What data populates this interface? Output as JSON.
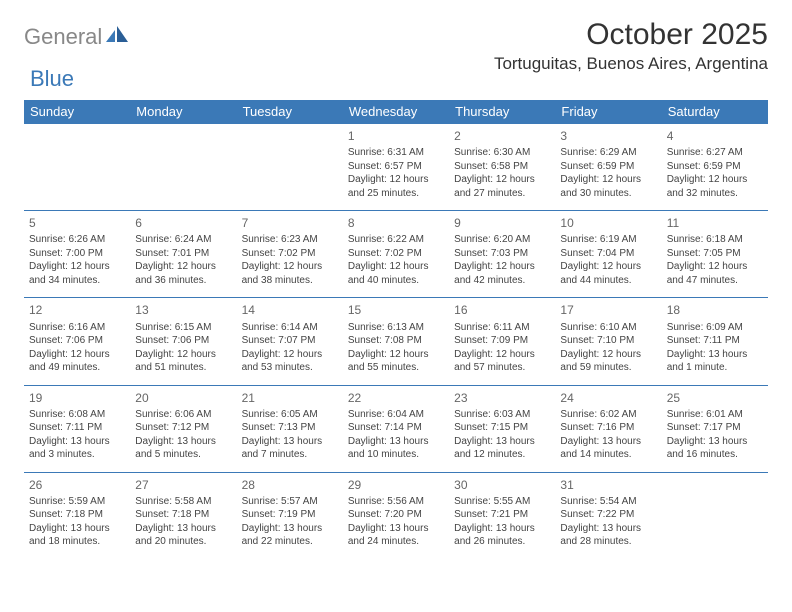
{
  "logo": {
    "left": "General",
    "right": "Blue"
  },
  "title": "October 2025",
  "location": "Tortuguitas, Buenos Aires, Argentina",
  "colors": {
    "header_bg": "#3b79b7",
    "header_text": "#ffffff",
    "border": "#3b79b7",
    "body_text": "#444444",
    "daynum": "#666666",
    "logo_gray": "#888888",
    "logo_blue": "#3b79b7",
    "page_bg": "#ffffff"
  },
  "daynames": [
    "Sunday",
    "Monday",
    "Tuesday",
    "Wednesday",
    "Thursday",
    "Friday",
    "Saturday"
  ],
  "weeks": [
    [
      {
        "day": "",
        "sunrise": "",
        "sunset": "",
        "daylight1": "",
        "daylight2": ""
      },
      {
        "day": "",
        "sunrise": "",
        "sunset": "",
        "daylight1": "",
        "daylight2": ""
      },
      {
        "day": "",
        "sunrise": "",
        "sunset": "",
        "daylight1": "",
        "daylight2": ""
      },
      {
        "day": "1",
        "sunrise": "Sunrise: 6:31 AM",
        "sunset": "Sunset: 6:57 PM",
        "daylight1": "Daylight: 12 hours",
        "daylight2": "and 25 minutes."
      },
      {
        "day": "2",
        "sunrise": "Sunrise: 6:30 AM",
        "sunset": "Sunset: 6:58 PM",
        "daylight1": "Daylight: 12 hours",
        "daylight2": "and 27 minutes."
      },
      {
        "day": "3",
        "sunrise": "Sunrise: 6:29 AM",
        "sunset": "Sunset: 6:59 PM",
        "daylight1": "Daylight: 12 hours",
        "daylight2": "and 30 minutes."
      },
      {
        "day": "4",
        "sunrise": "Sunrise: 6:27 AM",
        "sunset": "Sunset: 6:59 PM",
        "daylight1": "Daylight: 12 hours",
        "daylight2": "and 32 minutes."
      }
    ],
    [
      {
        "day": "5",
        "sunrise": "Sunrise: 6:26 AM",
        "sunset": "Sunset: 7:00 PM",
        "daylight1": "Daylight: 12 hours",
        "daylight2": "and 34 minutes."
      },
      {
        "day": "6",
        "sunrise": "Sunrise: 6:24 AM",
        "sunset": "Sunset: 7:01 PM",
        "daylight1": "Daylight: 12 hours",
        "daylight2": "and 36 minutes."
      },
      {
        "day": "7",
        "sunrise": "Sunrise: 6:23 AM",
        "sunset": "Sunset: 7:02 PM",
        "daylight1": "Daylight: 12 hours",
        "daylight2": "and 38 minutes."
      },
      {
        "day": "8",
        "sunrise": "Sunrise: 6:22 AM",
        "sunset": "Sunset: 7:02 PM",
        "daylight1": "Daylight: 12 hours",
        "daylight2": "and 40 minutes."
      },
      {
        "day": "9",
        "sunrise": "Sunrise: 6:20 AM",
        "sunset": "Sunset: 7:03 PM",
        "daylight1": "Daylight: 12 hours",
        "daylight2": "and 42 minutes."
      },
      {
        "day": "10",
        "sunrise": "Sunrise: 6:19 AM",
        "sunset": "Sunset: 7:04 PM",
        "daylight1": "Daylight: 12 hours",
        "daylight2": "and 44 minutes."
      },
      {
        "day": "11",
        "sunrise": "Sunrise: 6:18 AM",
        "sunset": "Sunset: 7:05 PM",
        "daylight1": "Daylight: 12 hours",
        "daylight2": "and 47 minutes."
      }
    ],
    [
      {
        "day": "12",
        "sunrise": "Sunrise: 6:16 AM",
        "sunset": "Sunset: 7:06 PM",
        "daylight1": "Daylight: 12 hours",
        "daylight2": "and 49 minutes."
      },
      {
        "day": "13",
        "sunrise": "Sunrise: 6:15 AM",
        "sunset": "Sunset: 7:06 PM",
        "daylight1": "Daylight: 12 hours",
        "daylight2": "and 51 minutes."
      },
      {
        "day": "14",
        "sunrise": "Sunrise: 6:14 AM",
        "sunset": "Sunset: 7:07 PM",
        "daylight1": "Daylight: 12 hours",
        "daylight2": "and 53 minutes."
      },
      {
        "day": "15",
        "sunrise": "Sunrise: 6:13 AM",
        "sunset": "Sunset: 7:08 PM",
        "daylight1": "Daylight: 12 hours",
        "daylight2": "and 55 minutes."
      },
      {
        "day": "16",
        "sunrise": "Sunrise: 6:11 AM",
        "sunset": "Sunset: 7:09 PM",
        "daylight1": "Daylight: 12 hours",
        "daylight2": "and 57 minutes."
      },
      {
        "day": "17",
        "sunrise": "Sunrise: 6:10 AM",
        "sunset": "Sunset: 7:10 PM",
        "daylight1": "Daylight: 12 hours",
        "daylight2": "and 59 minutes."
      },
      {
        "day": "18",
        "sunrise": "Sunrise: 6:09 AM",
        "sunset": "Sunset: 7:11 PM",
        "daylight1": "Daylight: 13 hours",
        "daylight2": "and 1 minute."
      }
    ],
    [
      {
        "day": "19",
        "sunrise": "Sunrise: 6:08 AM",
        "sunset": "Sunset: 7:11 PM",
        "daylight1": "Daylight: 13 hours",
        "daylight2": "and 3 minutes."
      },
      {
        "day": "20",
        "sunrise": "Sunrise: 6:06 AM",
        "sunset": "Sunset: 7:12 PM",
        "daylight1": "Daylight: 13 hours",
        "daylight2": "and 5 minutes."
      },
      {
        "day": "21",
        "sunrise": "Sunrise: 6:05 AM",
        "sunset": "Sunset: 7:13 PM",
        "daylight1": "Daylight: 13 hours",
        "daylight2": "and 7 minutes."
      },
      {
        "day": "22",
        "sunrise": "Sunrise: 6:04 AM",
        "sunset": "Sunset: 7:14 PM",
        "daylight1": "Daylight: 13 hours",
        "daylight2": "and 10 minutes."
      },
      {
        "day": "23",
        "sunrise": "Sunrise: 6:03 AM",
        "sunset": "Sunset: 7:15 PM",
        "daylight1": "Daylight: 13 hours",
        "daylight2": "and 12 minutes."
      },
      {
        "day": "24",
        "sunrise": "Sunrise: 6:02 AM",
        "sunset": "Sunset: 7:16 PM",
        "daylight1": "Daylight: 13 hours",
        "daylight2": "and 14 minutes."
      },
      {
        "day": "25",
        "sunrise": "Sunrise: 6:01 AM",
        "sunset": "Sunset: 7:17 PM",
        "daylight1": "Daylight: 13 hours",
        "daylight2": "and 16 minutes."
      }
    ],
    [
      {
        "day": "26",
        "sunrise": "Sunrise: 5:59 AM",
        "sunset": "Sunset: 7:18 PM",
        "daylight1": "Daylight: 13 hours",
        "daylight2": "and 18 minutes."
      },
      {
        "day": "27",
        "sunrise": "Sunrise: 5:58 AM",
        "sunset": "Sunset: 7:18 PM",
        "daylight1": "Daylight: 13 hours",
        "daylight2": "and 20 minutes."
      },
      {
        "day": "28",
        "sunrise": "Sunrise: 5:57 AM",
        "sunset": "Sunset: 7:19 PM",
        "daylight1": "Daylight: 13 hours",
        "daylight2": "and 22 minutes."
      },
      {
        "day": "29",
        "sunrise": "Sunrise: 5:56 AM",
        "sunset": "Sunset: 7:20 PM",
        "daylight1": "Daylight: 13 hours",
        "daylight2": "and 24 minutes."
      },
      {
        "day": "30",
        "sunrise": "Sunrise: 5:55 AM",
        "sunset": "Sunset: 7:21 PM",
        "daylight1": "Daylight: 13 hours",
        "daylight2": "and 26 minutes."
      },
      {
        "day": "31",
        "sunrise": "Sunrise: 5:54 AM",
        "sunset": "Sunset: 7:22 PM",
        "daylight1": "Daylight: 13 hours",
        "daylight2": "and 28 minutes."
      },
      {
        "day": "",
        "sunrise": "",
        "sunset": "",
        "daylight1": "",
        "daylight2": ""
      }
    ]
  ]
}
